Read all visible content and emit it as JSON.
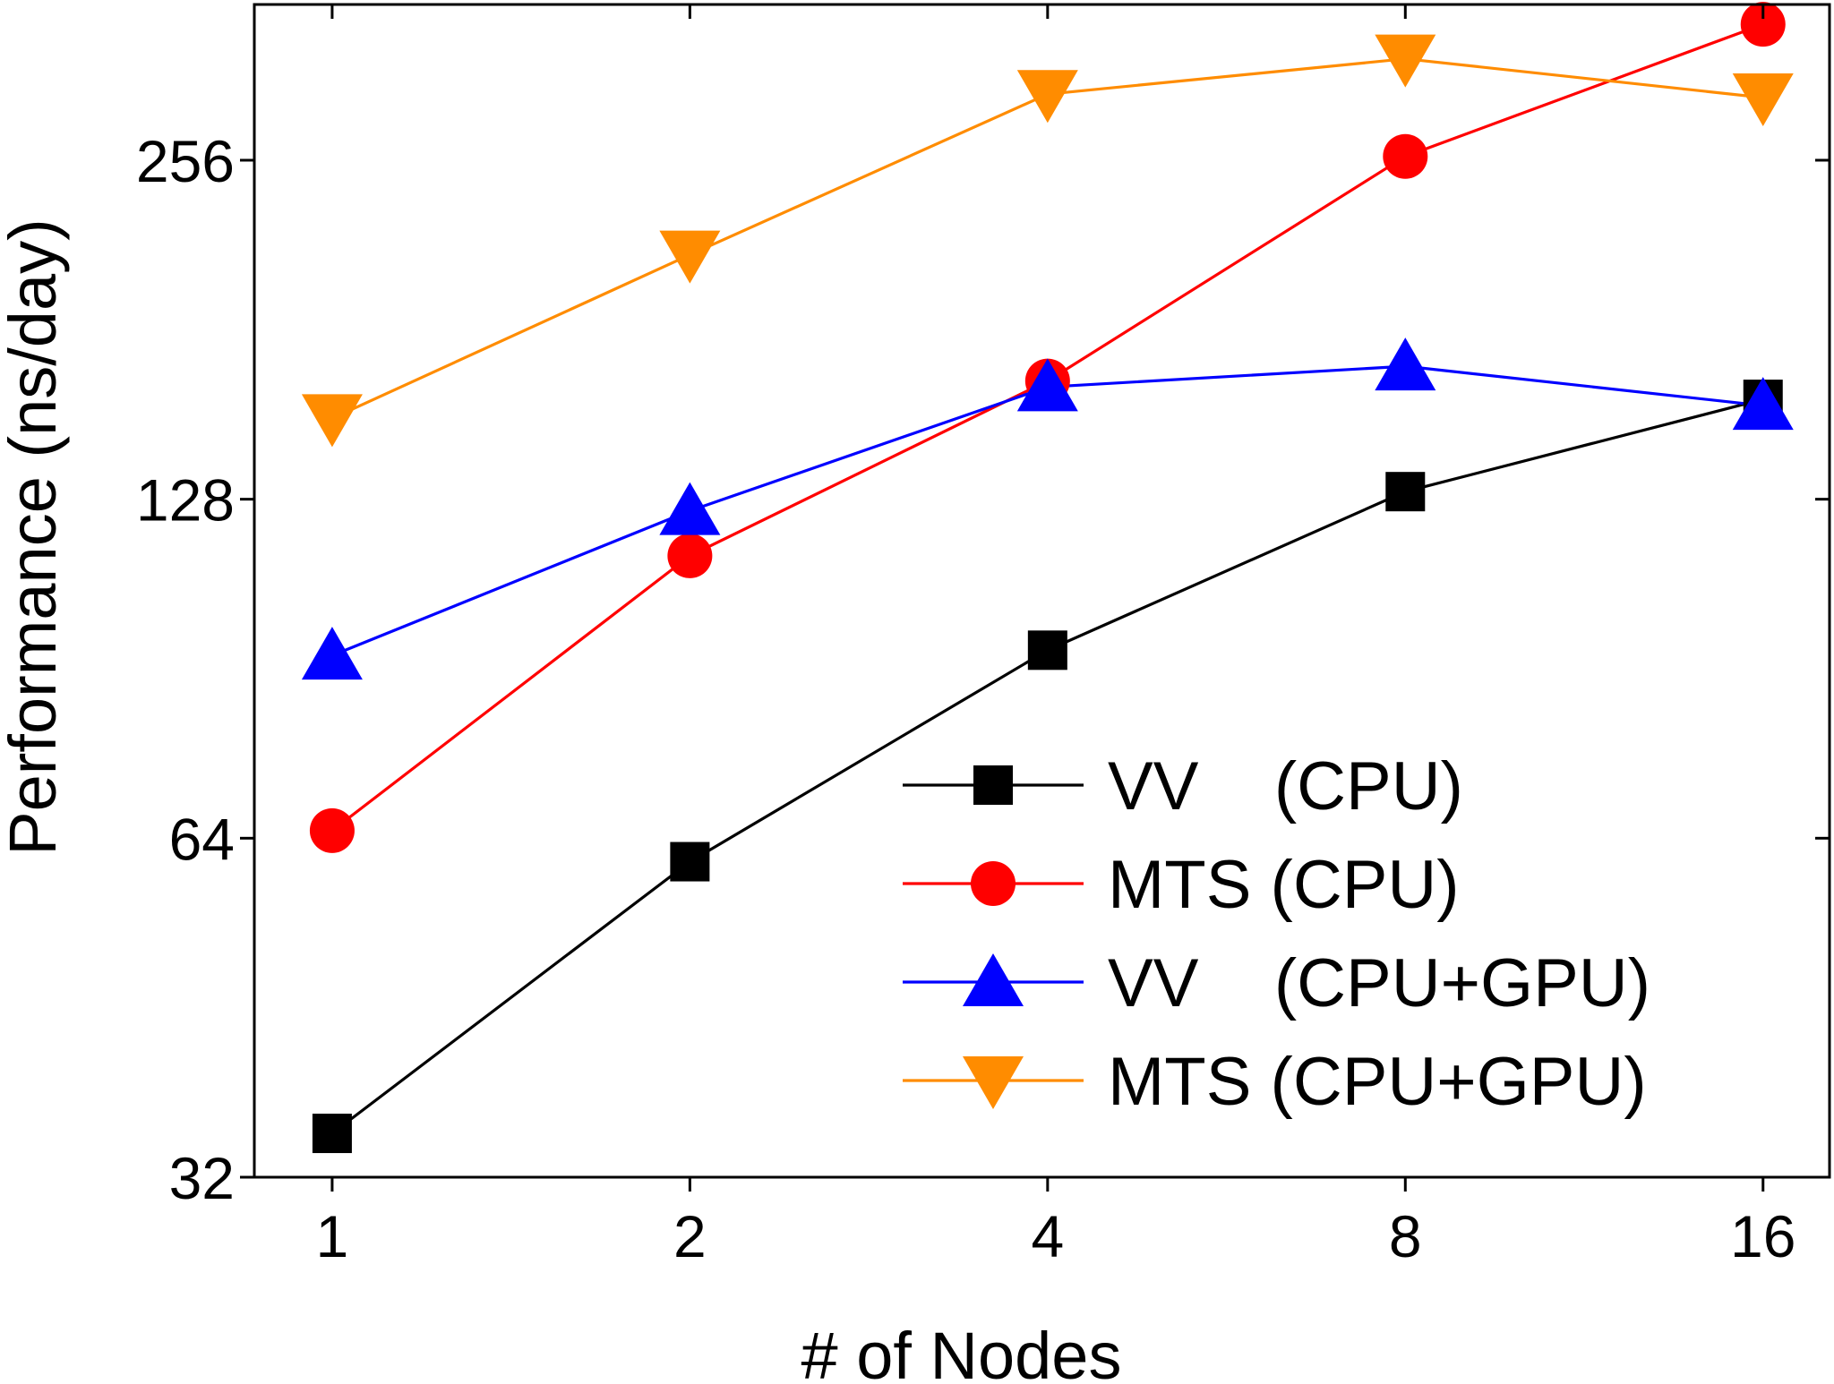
{
  "chart_data": {
    "type": "line",
    "title": "",
    "xlabel": "# of Nodes",
    "ylabel": "Performance (ns/day)",
    "x_scale": "log2",
    "y_scale": "log2",
    "xlim": [
      0.86,
      18.2
    ],
    "ylim": [
      32,
      352
    ],
    "x": [
      1,
      2,
      4,
      8,
      16
    ],
    "x_ticks": [
      1,
      2,
      4,
      8,
      16
    ],
    "x_tick_labels": [
      "1",
      "2",
      "4",
      "8",
      "16"
    ],
    "y_ticks": [
      32,
      64,
      128,
      256
    ],
    "y_tick_labels": [
      "32",
      "64",
      "128",
      "256"
    ],
    "grid": false,
    "legend_position": "bottom-right",
    "series": [
      {
        "name": "VV    (CPU)",
        "color": "#000000",
        "marker": "square",
        "values": [
          35,
          61,
          94,
          130,
          157
        ]
      },
      {
        "name": "MTS (CPU)",
        "color": "#ff0000",
        "marker": "circle",
        "values": [
          65,
          114,
          163,
          258,
          338
        ]
      },
      {
        "name": "VV    (CPU+GPU)",
        "color": "#0000ff",
        "marker": "triangle-up",
        "values": [
          93,
          125,
          161,
          168,
          155
        ]
      },
      {
        "name": "MTS (CPU+GPU)",
        "color": "#ff8c00",
        "marker": "triangle-down",
        "values": [
          151,
          211,
          293,
          315,
          291
        ]
      }
    ]
  }
}
